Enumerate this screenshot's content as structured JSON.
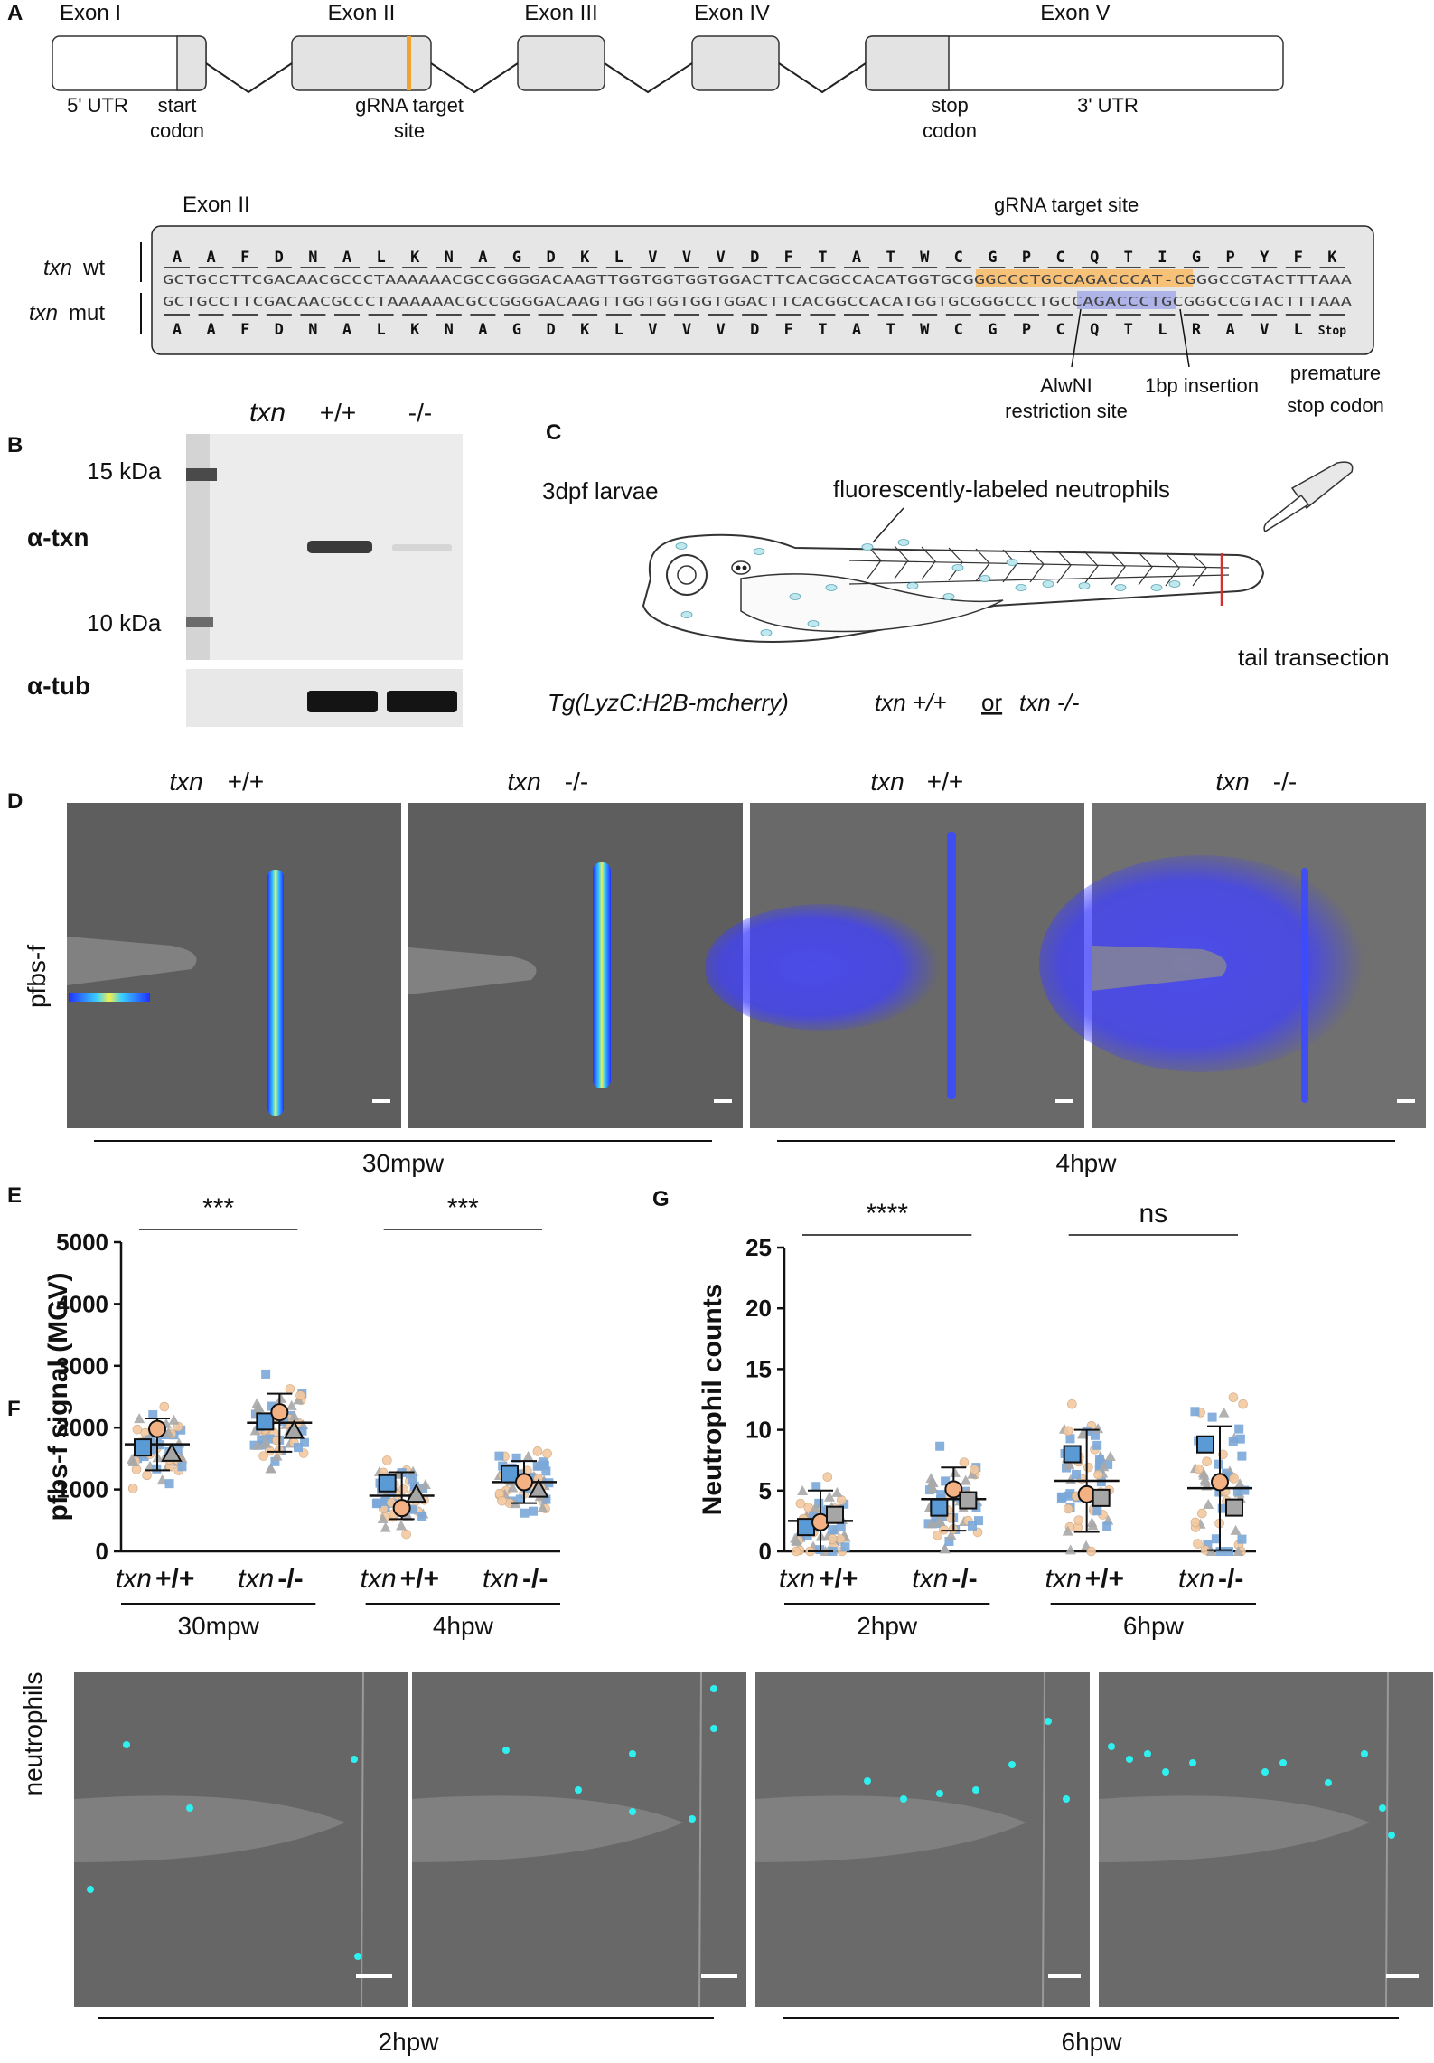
{
  "panel_a": {
    "label": "A",
    "exons": [
      "Exon I",
      "Exon II",
      "Exon III",
      "Exon IV",
      "Exon V"
    ],
    "annotations": {
      "utr5": "5' UTR",
      "start": [
        "start",
        "codon"
      ],
      "grna": [
        "gRNA target",
        "site"
      ],
      "stop": [
        "stop",
        "codon"
      ],
      "utr3": "3' UTR"
    },
    "zoom_title": "Exon II",
    "zoom_grna": "gRNA target site",
    "wt_label_it": "txn",
    "wt_label": " wt",
    "mut_label_it": "txn",
    "mut_label": " mut",
    "aa_wt": [
      "A",
      "A",
      "F",
      "D",
      "N",
      "A",
      "L",
      "K",
      "N",
      "A",
      "G",
      "D",
      "K",
      "L",
      "V",
      "V",
      "V",
      "D",
      "F",
      "T",
      "A",
      "T",
      "W",
      "C",
      "G",
      "P",
      "C",
      "Q",
      "T",
      "I",
      "G",
      "P",
      "Y",
      "F",
      "K"
    ],
    "seq_wt": "GCTGCCTTCGACAACGCCCTAAAAAACGCCGGGGACAAGTTGGTGGTGGTGGACTTCACGGCCACATGGTGCGGGCCCTGCCAGACCCAT-CGGGCCGTACTTTAAA",
    "seq_mut": "GCTGCCTTCGACAACGCCCTAAAAAACGCCGGGGACAAGTTGGTGGTGGTGGACTTCACGGCCACATGGTGCGGGCCCTGCCAGACCCTGCGGGCCGTACTTTAAA",
    "aa_mut": [
      "A",
      "A",
      "F",
      "D",
      "N",
      "A",
      "L",
      "K",
      "N",
      "A",
      "G",
      "D",
      "K",
      "L",
      "V",
      "V",
      "V",
      "D",
      "F",
      "T",
      "A",
      "T",
      "W",
      "C",
      "G",
      "P",
      "C",
      "Q",
      "T",
      "L",
      "R",
      "A",
      "V",
      "L",
      "Stop"
    ],
    "callouts": {
      "alwni": [
        "AlwNI",
        "restriction site"
      ],
      "insertion": "1bp insertion",
      "premature": [
        "premature",
        "stop codon"
      ]
    }
  },
  "panel_b": {
    "label": "B",
    "header_it": "txn",
    "lanes": [
      "+/+",
      "-/-"
    ],
    "markers": [
      "15 kDa",
      "10 kDa"
    ],
    "rows": [
      "α-txn",
      "α-tub"
    ]
  },
  "panel_c": {
    "label": "C",
    "stage": "3dpf larvae",
    "neutrophils": "fluorescently-labeled neutrophils",
    "transection": "tail transection",
    "line": "Tg(LyzC:H2B-mcherry)",
    "geno1": "txn +/+",
    "or": "or",
    "geno2": "txn -/-"
  },
  "panel_d": {
    "label": "D",
    "row_label": "pfbs-f",
    "columns": [
      {
        "it": "txn",
        "g": " +/+"
      },
      {
        "it": "txn",
        "g": " -/-"
      },
      {
        "it": "txn",
        "g": " +/+"
      },
      {
        "it": "txn",
        "g": " -/-"
      }
    ],
    "groups": [
      "30mpw",
      "4hpw"
    ]
  },
  "panel_f": {
    "label": "F",
    "row_label": "neutrophils",
    "groups": [
      "2hpw",
      "6hpw"
    ]
  },
  "chart_data": [
    {
      "panel": "E",
      "type": "scatter",
      "ylabel": "pfbs-f signal (MGV)",
      "ylim": [
        0,
        5000
      ],
      "yticks": [
        "0",
        "1000",
        "2000",
        "3000",
        "4000",
        "5000"
      ],
      "categories": [
        "txn +/+",
        "txn -/-",
        "txn +/+",
        "txn -/-"
      ],
      "groups": [
        "30mpw",
        "4hpw"
      ],
      "means": [
        1730,
        2080,
        900,
        1120
      ],
      "sd": [
        420,
        470,
        380,
        340
      ],
      "replicate_means": [
        {
          "marker": "square",
          "color": "#5b9bd5",
          "values": [
            1680,
            2100,
            1100,
            1250
          ]
        },
        {
          "marker": "circle",
          "color": "#f4b183",
          "values": [
            1980,
            2250,
            700,
            1120
          ]
        },
        {
          "marker": "triangle",
          "color": "#a6a6a6",
          "values": [
            1580,
            1950,
            920,
            1000
          ]
        }
      ],
      "significance": [
        "***",
        "***"
      ]
    },
    {
      "panel": "G",
      "type": "scatter",
      "ylabel": "Neutrophil counts",
      "ylim": [
        0,
        25
      ],
      "yticks": [
        "0",
        "5",
        "10",
        "15",
        "20",
        "25"
      ],
      "categories": [
        "txn +/+",
        "txn -/-",
        "txn +/+",
        "txn -/-"
      ],
      "groups": [
        "2hpw",
        "6hpw"
      ],
      "means": [
        2.5,
        4.3,
        5.8,
        5.2
      ],
      "sd": [
        2.5,
        2.6,
        4.2,
        5.1
      ],
      "replicate_means": [
        {
          "marker": "square",
          "color": "#5b9bd5",
          "values": [
            2.0,
            3.6,
            8.0,
            8.8
          ]
        },
        {
          "marker": "circle",
          "color": "#f4b183",
          "values": [
            2.4,
            5.1,
            4.7,
            5.7
          ]
        },
        {
          "marker": "square",
          "color": "#a6a6a6",
          "values": [
            3.0,
            4.2,
            4.4,
            3.6
          ]
        }
      ],
      "significance": [
        "****",
        "ns"
      ]
    }
  ]
}
